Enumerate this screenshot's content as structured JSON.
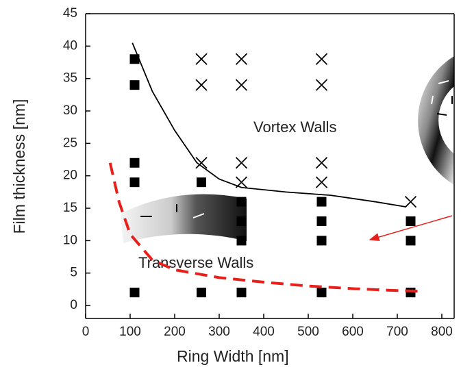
{
  "chart_data": {
    "type": "scatter",
    "x_label": "Ring Width [nm]",
    "y_label": "Film thickness [nm]",
    "xlim": [
      0,
      830
    ],
    "xticks": [
      0,
      100,
      200,
      300,
      400,
      500,
      600,
      700,
      800
    ],
    "ylim": [
      -2,
      45
    ],
    "yticks": [
      0,
      5,
      10,
      15,
      20,
      25,
      30,
      35,
      40,
      45
    ],
    "annotations": [
      "Vortex Walls",
      "Transverse Walls"
    ],
    "series": [
      {
        "style": "square",
        "color": "#000000",
        "x": [
          110,
          110,
          110,
          110,
          110,
          260,
          260,
          350,
          350,
          350,
          350,
          530,
          530,
          530,
          530,
          730,
          730,
          730
        ],
        "values": [
          38,
          34,
          22,
          19,
          2,
          19,
          2,
          16,
          13,
          10,
          2,
          16,
          13,
          10,
          2,
          13,
          10,
          2
        ]
      },
      {
        "style": "cross",
        "color": "#000000",
        "x": [
          260,
          260,
          260,
          350,
          350,
          350,
          350,
          530,
          530,
          530,
          530,
          730
        ],
        "values": [
          38,
          34,
          22,
          38,
          34,
          22,
          19,
          38,
          34,
          22,
          19,
          16
        ]
      },
      {
        "style": "line",
        "color": "#000000",
        "x": [
          105,
          150,
          200,
          250,
          300,
          350,
          450,
          550,
          650,
          720
        ],
        "values": [
          40.5,
          33,
          27,
          22,
          19.5,
          18.2,
          17.5,
          17,
          16,
          15.2
        ]
      },
      {
        "style": "dashed",
        "color": "#e8201c",
        "x": [
          55,
          75,
          100,
          150,
          200,
          300,
          400,
          500,
          600,
          700,
          760
        ],
        "values": [
          22,
          16,
          11,
          7,
          5.5,
          4.3,
          3.6,
          3,
          2.6,
          2.3,
          2.2
        ]
      }
    ]
  }
}
